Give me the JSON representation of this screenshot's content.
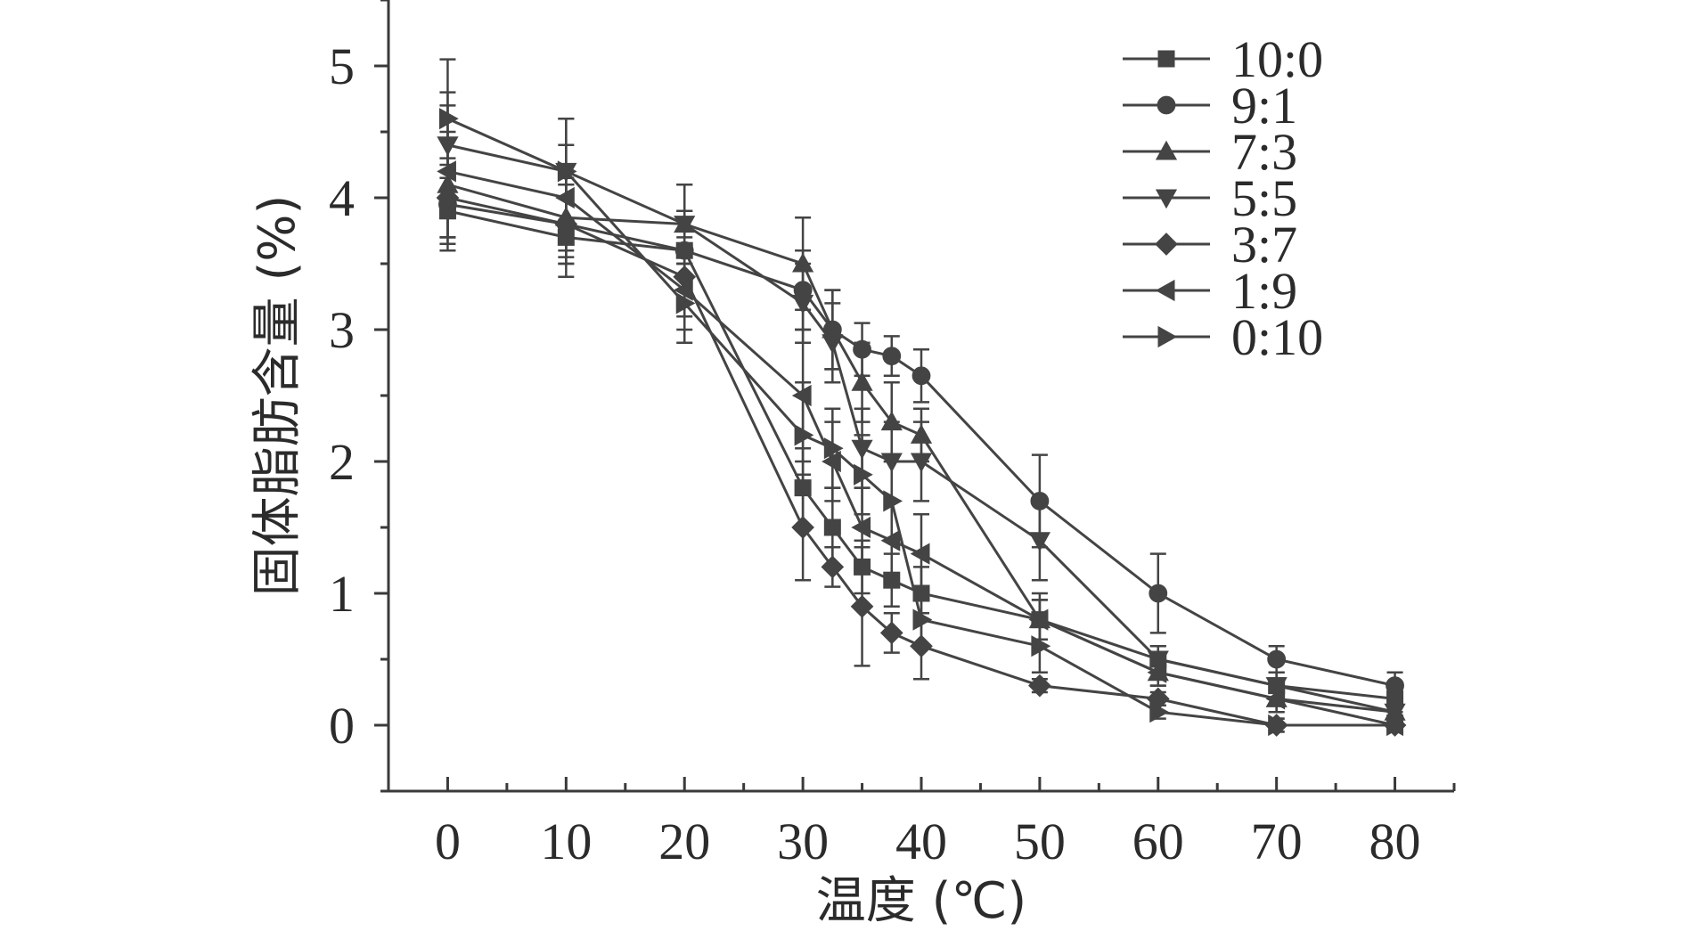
{
  "chart_data": {
    "type": "line",
    "title": "",
    "xlabel": "温度 (℃)",
    "ylabel": "固体脂肪含量 (%)",
    "xlim": [
      -5,
      85
    ],
    "ylim": [
      -0.5,
      5.5
    ],
    "xticks": [
      0,
      10,
      20,
      30,
      40,
      50,
      60,
      70,
      80
    ],
    "yticks": [
      0,
      1,
      2,
      3,
      4,
      5
    ],
    "x": [
      0,
      10,
      20,
      30,
      32.5,
      35,
      37.5,
      40,
      50,
      60,
      70,
      80
    ],
    "legend_position": "top-right",
    "series": [
      {
        "name": "10:0",
        "marker": "square",
        "values": [
          3.9,
          3.7,
          3.6,
          1.8,
          1.5,
          1.2,
          1.1,
          1.0,
          0.8,
          0.5,
          0.3,
          0.2
        ],
        "errors": [
          0.3,
          0.3,
          0.3,
          0.3,
          0.3,
          0.2,
          0.2,
          0.2,
          0.15,
          0.1,
          0.1,
          0.1
        ]
      },
      {
        "name": "9:1",
        "marker": "circle",
        "values": [
          3.95,
          3.8,
          3.6,
          3.3,
          3.0,
          2.85,
          2.8,
          2.65,
          1.7,
          1.0,
          0.5,
          0.3
        ],
        "errors": [
          0.3,
          0.3,
          0.3,
          0.3,
          0.3,
          0.2,
          0.15,
          0.2,
          0.35,
          0.3,
          0.1,
          0.1
        ]
      },
      {
        "name": "7:3",
        "marker": "triangle-up",
        "values": [
          4.1,
          3.85,
          3.8,
          3.5,
          3.0,
          2.6,
          2.3,
          2.2,
          0.8,
          0.4,
          0.2,
          0.1
        ],
        "errors": [
          0.4,
          0.3,
          0.3,
          0.35,
          0.3,
          0.3,
          0.3,
          0.2,
          0.15,
          0.1,
          0.1,
          0.1
        ]
      },
      {
        "name": "5:5",
        "marker": "triangle-down",
        "values": [
          4.4,
          4.2,
          3.8,
          3.2,
          2.9,
          2.1,
          2.0,
          2.0,
          1.4,
          0.5,
          0.3,
          0.1
        ],
        "errors": [
          0.4,
          0.4,
          0.3,
          0.3,
          0.3,
          0.3,
          0.3,
          0.3,
          0.3,
          0.1,
          0.1,
          0.1
        ]
      },
      {
        "name": "3:7",
        "marker": "diamond",
        "values": [
          4.0,
          3.8,
          3.4,
          1.5,
          1.2,
          0.9,
          0.7,
          0.6,
          0.3,
          0.2,
          0.0,
          0.0
        ],
        "errors": [
          0.3,
          0.3,
          0.3,
          0.4,
          0.15,
          0.45,
          0.15,
          0.25,
          0.05,
          0.05,
          0.05,
          0.05
        ]
      },
      {
        "name": "1:9",
        "marker": "triangle-left",
        "values": [
          4.2,
          4.0,
          3.3,
          2.5,
          2.0,
          1.5,
          1.4,
          1.3,
          0.8,
          0.4,
          0.2,
          0.0
        ],
        "errors": [
          0.5,
          0.4,
          0.3,
          0.5,
          0.3,
          0.3,
          0.3,
          0.3,
          0.2,
          0.1,
          0.1,
          0.05
        ]
      },
      {
        "name": "0:10",
        "marker": "triangle-right",
        "values": [
          4.6,
          4.2,
          3.2,
          2.2,
          2.1,
          1.9,
          1.7,
          0.8,
          0.6,
          0.1,
          0.0,
          0.0
        ],
        "errors": [
          0.45,
          0.4,
          0.3,
          0.4,
          0.3,
          0.3,
          0.3,
          0.2,
          0.2,
          0.05,
          0.05,
          0.05
        ]
      }
    ]
  }
}
